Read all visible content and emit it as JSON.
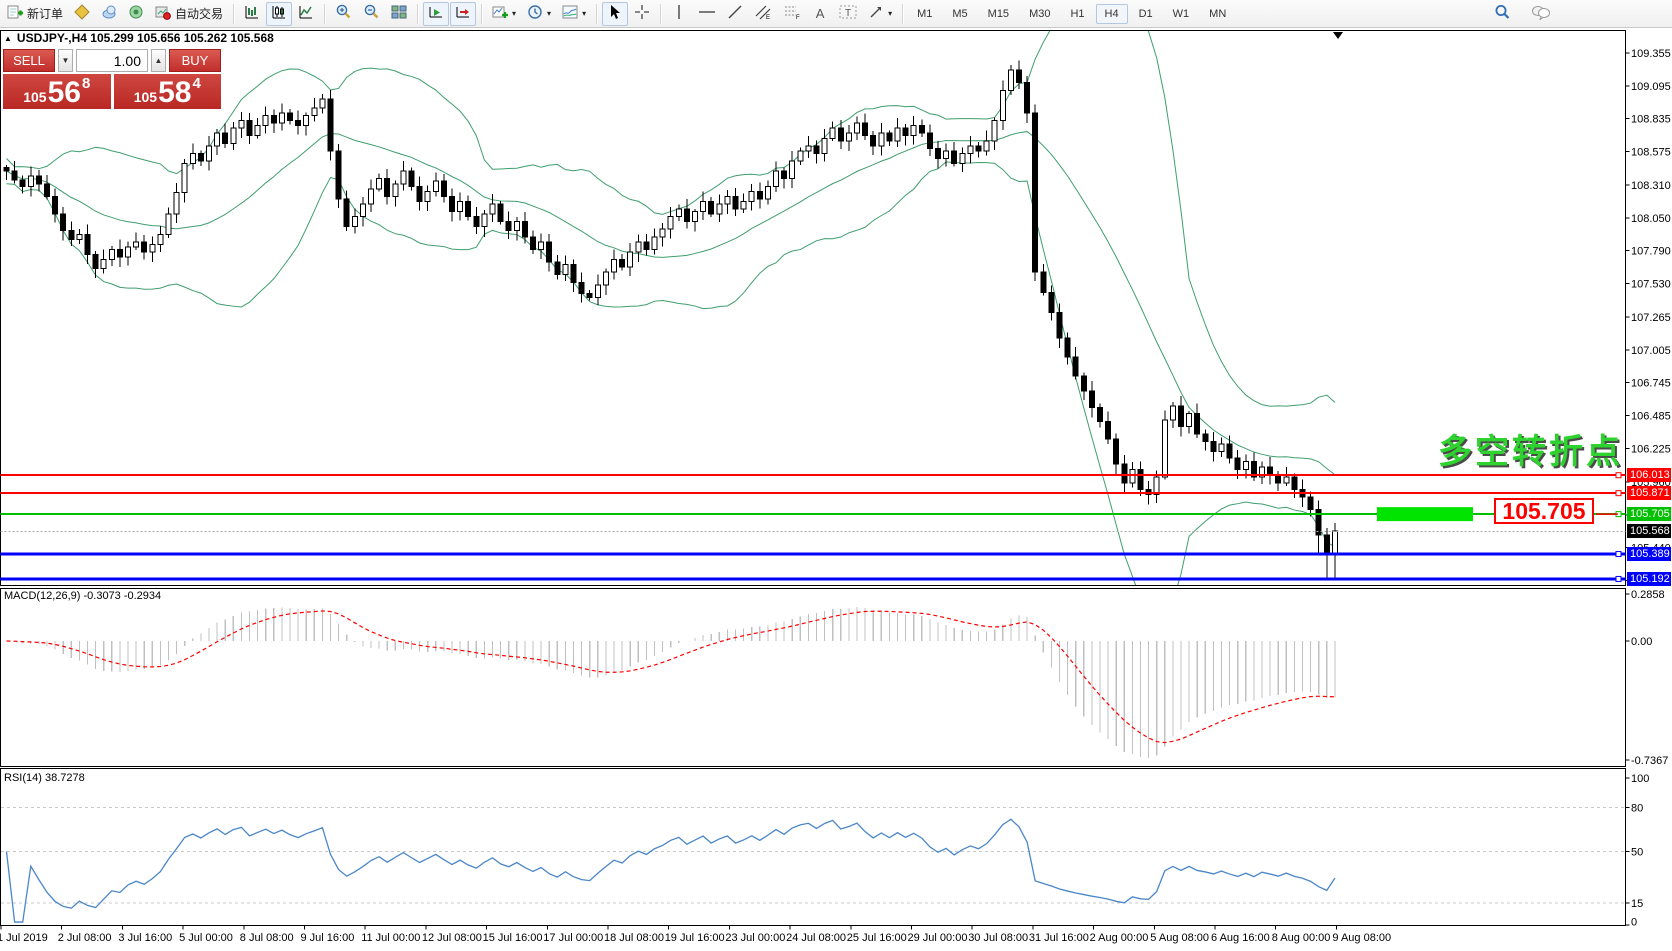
{
  "toolbar": {
    "new_order_label": "新订单",
    "autotrading_label": "自动交易",
    "timeframes": [
      "M1",
      "M5",
      "M15",
      "M30",
      "H1",
      "H4",
      "D1",
      "W1",
      "MN"
    ],
    "active_timeframe": "H4"
  },
  "symbol_info": {
    "text": "USDJPY-,H4  105.299 105.656 105.262 105.568"
  },
  "trade_panel": {
    "sell_label": "SELL",
    "buy_label": "BUY",
    "volume": "1.00",
    "sell_price_major": "105",
    "sell_price_big": "56",
    "sell_price_sup": "8",
    "buy_price_major": "105",
    "buy_price_big": "58",
    "buy_price_sup": "4"
  },
  "annotation": {
    "turning_point_text": "多空转折点",
    "price_callout": "105.705",
    "bar_color": "#00e400"
  },
  "price_axis": {
    "ticks": [
      "109.355",
      "109.095",
      "108.835",
      "108.575",
      "108.310",
      "108.050",
      "107.790",
      "107.530",
      "107.265",
      "107.005",
      "106.745",
      "106.485",
      "106.225",
      "105.960",
      "105.700",
      "105.440",
      "105.180"
    ]
  },
  "chart_data": {
    "type": "candlestick",
    "symbol": "USDJPY",
    "period": "H4",
    "bull_color": "#ffffff",
    "bear_color": "#000000",
    "bollinger": {
      "period": 20,
      "deviation": 2,
      "color": "#3f9e6e"
    },
    "closes": [
      108.42,
      108.35,
      108.3,
      108.38,
      108.32,
      108.22,
      108.08,
      107.95,
      107.88,
      107.92,
      107.76,
      107.65,
      107.72,
      107.8,
      107.74,
      107.82,
      107.86,
      107.78,
      107.84,
      107.92,
      108.08,
      108.25,
      108.48,
      108.56,
      108.5,
      108.62,
      108.72,
      108.64,
      108.76,
      108.82,
      108.7,
      108.78,
      108.86,
      108.8,
      108.88,
      108.82,
      108.78,
      108.86,
      108.92,
      108.99,
      108.58,
      108.2,
      107.98,
      108.06,
      108.16,
      108.28,
      108.36,
      108.22,
      108.32,
      108.42,
      108.3,
      108.18,
      108.26,
      108.34,
      108.22,
      108.1,
      108.18,
      108.06,
      107.98,
      108.08,
      108.16,
      108.02,
      107.95,
      108.02,
      107.9,
      107.8,
      107.86,
      107.7,
      107.6,
      107.68,
      107.54,
      107.45,
      107.42,
      107.52,
      107.62,
      107.72,
      107.66,
      107.78,
      107.86,
      107.8,
      107.9,
      107.96,
      108.06,
      108.12,
      108.02,
      108.1,
      108.18,
      108.08,
      108.16,
      108.22,
      108.12,
      108.18,
      108.26,
      108.2,
      108.3,
      108.42,
      108.36,
      108.5,
      108.58,
      108.62,
      108.56,
      108.68,
      108.76,
      108.66,
      108.72,
      108.8,
      108.7,
      108.62,
      108.72,
      108.66,
      108.76,
      108.7,
      108.78,
      108.72,
      108.6,
      108.52,
      108.58,
      108.48,
      108.56,
      108.62,
      108.58,
      108.66,
      108.82,
      109.06,
      109.22,
      109.12,
      108.88,
      107.62,
      107.46,
      107.3,
      107.1,
      106.95,
      106.8,
      106.68,
      106.55,
      106.44,
      106.3,
      106.1,
      105.95,
      106.06,
      105.9,
      105.86,
      106.0,
      106.45,
      106.56,
      106.4,
      106.5,
      106.34,
      106.28,
      106.2,
      106.26,
      106.15,
      106.06,
      106.12,
      106.0,
      106.08,
      106.02,
      105.95,
      106.0,
      105.9,
      105.84,
      105.74,
      105.54,
      105.38,
      105.57
    ],
    "hlines": [
      {
        "price": 106.013,
        "color": "#ff0000",
        "width": 2
      },
      {
        "price": 105.871,
        "color": "#ff0000",
        "width": 2
      },
      {
        "price": 105.705,
        "color": "#00c000",
        "width": 2
      },
      {
        "price": 105.389,
        "color": "#0000ff",
        "width": 3
      },
      {
        "price": 105.192,
        "color": "#0000ff",
        "width": 3
      }
    ],
    "bid": {
      "price": 105.568,
      "label_bg": "#000000"
    },
    "x_labels": [
      "1 Jul 2019",
      "2 Jul 08:00",
      "3 Jul 16:00",
      "5 Jul 00:00",
      "8 Jul 08:00",
      "9 Jul 16:00",
      "11 Jul 00:00",
      "12 Jul 08:00",
      "15 Jul 16:00",
      "17 Jul 00:00",
      "18 Jul 08:00",
      "19 Jul 16:00",
      "23 Jul 00:00",
      "24 Jul 08:00",
      "25 Jul 16:00",
      "29 Jul 00:00",
      "30 Jul 08:00",
      "31 Jul 16:00",
      "2 Aug 00:00",
      "5 Aug 08:00",
      "6 Aug 16:00",
      "8 Aug 00:00",
      "9 Aug 08:00"
    ]
  },
  "macd": {
    "name": "MACD(12,26,9)",
    "values": "-0.3073 -0.2934",
    "axis": [
      "0.2858",
      "0.00",
      "-0.7367"
    ],
    "histogram_color": "#c0c0c0",
    "signal_color": "#ff0000"
  },
  "rsi": {
    "name": "RSI(14)",
    "value": "38.7278",
    "levels": [
      "100",
      "80",
      "50",
      "15",
      "0"
    ],
    "level_lines": [
      80,
      50,
      15
    ],
    "line_color": "#4a86c8"
  }
}
